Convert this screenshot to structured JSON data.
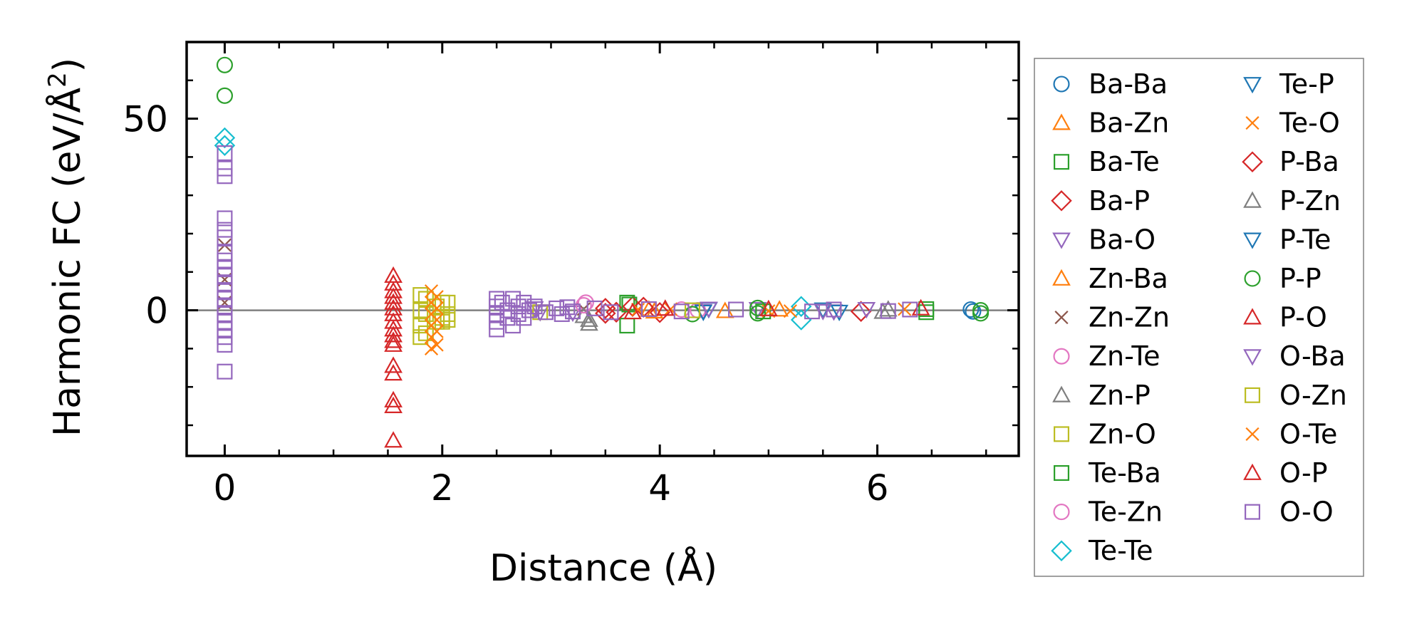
{
  "chart_data": {
    "type": "scatter",
    "title": "",
    "xlabel": "Distance (Å)",
    "ylabel_main": "Harmonic FC (eV/Å",
    "ylabel_sup": "2",
    "ylabel_close": ")",
    "xlim": [
      -0.35,
      7.3
    ],
    "ylim": [
      -38,
      70
    ],
    "xticks": [
      0,
      2,
      4,
      6
    ],
    "xticklabels": [
      "0",
      "2",
      "4",
      "6"
    ],
    "xminor": [
      0.5,
      1,
      1.5,
      2.5,
      3,
      3.5,
      4.5,
      5,
      5.5,
      6.5,
      7
    ],
    "yticks": [
      0,
      50
    ],
    "yticklabels": [
      "0",
      "50"
    ],
    "yminor": [
      -30,
      -20,
      -10,
      10,
      20,
      30,
      40,
      60
    ],
    "zero_line": 0,
    "legend_position": "outside-right",
    "series": [
      {
        "name": "Ba-Ba",
        "marker": "circle",
        "color": "#1f77b4",
        "filled": false,
        "points": [
          [
            6.88,
            -0.3
          ],
          [
            6.86,
            0.2
          ]
        ]
      },
      {
        "name": "Ba-Zn",
        "marker": "triangle-up",
        "color": "#ff7f0e",
        "filled": false,
        "points": [
          [
            3.9,
            0.2
          ],
          [
            4.6,
            -0.2
          ]
        ]
      },
      {
        "name": "Ba-Te",
        "marker": "square",
        "color": "#2ca02c",
        "filled": false,
        "points": [
          [
            3.7,
            -4
          ],
          [
            3.7,
            2
          ],
          [
            6.45,
            -0.5
          ],
          [
            6.45,
            0.3
          ]
        ]
      },
      {
        "name": "Ba-P",
        "marker": "diamond",
        "color": "#d62728",
        "filled": false,
        "points": [
          [
            3.5,
            0.5
          ],
          [
            3.6,
            -0.5
          ],
          [
            3.75,
            1
          ],
          [
            4.0,
            -0.6
          ]
        ]
      },
      {
        "name": "Ba-O",
        "marker": "triangle-down",
        "color": "#9467bd",
        "filled": false,
        "points": [
          [
            2.85,
            0.5
          ],
          [
            3.2,
            -0.6
          ],
          [
            4.4,
            -0.2
          ],
          [
            4.9,
            0.3
          ],
          [
            5.6,
            -0.3
          ]
        ]
      },
      {
        "name": "Zn-Ba",
        "marker": "triangle-up",
        "color": "#ff7f0e",
        "filled": false,
        "points": [
          [
            3.95,
            -0.3
          ],
          [
            5.1,
            0.2
          ]
        ]
      },
      {
        "name": "Zn-Zn",
        "marker": "x",
        "color": "#8c564b",
        "filled": false,
        "points": [
          [
            0,
            17
          ],
          [
            0,
            8
          ],
          [
            0,
            2
          ],
          [
            3.3,
            0.3
          ]
        ]
      },
      {
        "name": "Zn-Te",
        "marker": "circle",
        "color": "#e377c2",
        "filled": false,
        "points": [
          [
            3.32,
            2
          ],
          [
            4.2,
            0.2
          ]
        ]
      },
      {
        "name": "Zn-P",
        "marker": "triangle-up",
        "color": "#7f7f7f",
        "filled": false,
        "points": [
          [
            3.35,
            -3.5
          ],
          [
            3.3,
            -1.5
          ],
          [
            6.1,
            0.2
          ]
        ]
      },
      {
        "name": "Zn-O",
        "marker": "square",
        "color": "#bcbd22",
        "filled": false,
        "points": [
          [
            1.85,
            3
          ],
          [
            1.85,
            -1
          ],
          [
            1.85,
            -6
          ],
          [
            2.0,
            2
          ],
          [
            2.0,
            -2
          ],
          [
            2.0,
            -3
          ]
        ]
      },
      {
        "name": "Te-Ba",
        "marker": "square",
        "color": "#2ca02c",
        "filled": false,
        "points": [
          [
            3.72,
            1.5
          ],
          [
            4.95,
            -0.3
          ]
        ]
      },
      {
        "name": "Te-Zn",
        "marker": "circle",
        "color": "#e377c2",
        "filled": false,
        "points": [
          [
            3.3,
            1.3
          ],
          [
            4.35,
            0
          ]
        ]
      },
      {
        "name": "Te-Te",
        "marker": "diamond",
        "color": "#17becf",
        "filled": false,
        "points": [
          [
            0,
            45
          ],
          [
            0,
            43
          ],
          [
            5.3,
            -2.5
          ],
          [
            5.3,
            1
          ]
        ]
      },
      {
        "name": "Te-P",
        "marker": "triangle-down",
        "color": "#1f77b4",
        "filled": false,
        "points": [
          [
            4.4,
            -0.4
          ],
          [
            5.5,
            0.2
          ]
        ]
      },
      {
        "name": "Te-O",
        "marker": "x",
        "color": "#ff7f0e",
        "filled": false,
        "points": [
          [
            4.1,
            0.3
          ],
          [
            5.0,
            -0.2
          ],
          [
            6.25,
            0.3
          ]
        ]
      },
      {
        "name": "P-Ba",
        "marker": "diamond",
        "color": "#d62728",
        "filled": false,
        "points": [
          [
            3.5,
            -0.8
          ],
          [
            3.85,
            0.8
          ],
          [
            5.85,
            -0.3
          ]
        ]
      },
      {
        "name": "P-Zn",
        "marker": "triangle-up",
        "color": "#7f7f7f",
        "filled": false,
        "points": [
          [
            3.35,
            -2.5
          ],
          [
            6.05,
            -0.4
          ]
        ]
      },
      {
        "name": "P-Te",
        "marker": "triangle-down",
        "color": "#1f77b4",
        "filled": false,
        "points": [
          [
            4.45,
            0.3
          ],
          [
            5.65,
            -0.4
          ]
        ]
      },
      {
        "name": "P-P",
        "marker": "circle",
        "color": "#2ca02c",
        "filled": false,
        "points": [
          [
            0,
            64
          ],
          [
            0,
            56
          ],
          [
            4.3,
            -1
          ],
          [
            4.9,
            -0.8
          ],
          [
            4.9,
            0.6
          ],
          [
            6.95,
            -0.8
          ],
          [
            6.95,
            0
          ]
        ]
      },
      {
        "name": "P-O",
        "marker": "triangle-up",
        "color": "#d62728",
        "filled": false,
        "points": [
          [
            1.55,
            9
          ],
          [
            1.55,
            7
          ],
          [
            1.55,
            5
          ],
          [
            1.55,
            3.5
          ],
          [
            1.55,
            2
          ],
          [
            1.55,
            0.5
          ],
          [
            1.55,
            -1
          ],
          [
            1.55,
            -3
          ],
          [
            1.55,
            -5
          ],
          [
            1.55,
            -6.5
          ],
          [
            1.55,
            -8
          ],
          [
            1.55,
            -9
          ],
          [
            1.55,
            -14.5
          ],
          [
            1.55,
            -16.5
          ],
          [
            1.55,
            -23.5
          ],
          [
            1.55,
            -25
          ],
          [
            1.55,
            -34
          ]
        ]
      },
      {
        "name": "O-Ba",
        "marker": "triangle-down",
        "color": "#9467bd",
        "filled": false,
        "points": [
          [
            2.9,
            -0.5
          ],
          [
            4.45,
            0.4
          ],
          [
            5.5,
            -0.2
          ],
          [
            5.9,
            0.3
          ]
        ]
      },
      {
        "name": "O-Zn",
        "marker": "square",
        "color": "#bcbd22",
        "filled": false,
        "points": [
          [
            1.8,
            4
          ],
          [
            1.8,
            0
          ],
          [
            1.8,
            -4
          ],
          [
            1.8,
            -7
          ],
          [
            1.95,
            1
          ],
          [
            1.95,
            -3
          ],
          [
            2.05,
            2
          ],
          [
            2.05,
            -1
          ],
          [
            2.05,
            -2.5
          ],
          [
            2.9,
            -0.5
          ],
          [
            4.3,
            0
          ]
        ]
      },
      {
        "name": "O-Te",
        "marker": "x",
        "color": "#ff7f0e",
        "filled": false,
        "points": [
          [
            1.9,
            5
          ],
          [
            1.95,
            3.5
          ],
          [
            1.9,
            2
          ],
          [
            1.95,
            0.5
          ],
          [
            1.9,
            -1
          ],
          [
            1.95,
            -2.5
          ],
          [
            1.9,
            -4
          ],
          [
            1.95,
            -5.5
          ],
          [
            1.9,
            -7
          ],
          [
            1.95,
            -9
          ],
          [
            1.9,
            -10
          ],
          [
            3.8,
            0.2
          ],
          [
            5.2,
            -0.2
          ]
        ]
      },
      {
        "name": "O-P",
        "marker": "triangle-up",
        "color": "#d62728",
        "filled": false,
        "points": [
          [
            3.75,
            -0.5
          ],
          [
            4.05,
            0.4
          ],
          [
            5.0,
            0.3
          ],
          [
            6.4,
            0.5
          ]
        ]
      },
      {
        "name": "O-O",
        "marker": "square",
        "color": "#9467bd",
        "filled": false,
        "points": [
          [
            0,
            41
          ],
          [
            0,
            37
          ],
          [
            0,
            35
          ],
          [
            0,
            24
          ],
          [
            0,
            21
          ],
          [
            0,
            19
          ],
          [
            0,
            15
          ],
          [
            0,
            13
          ],
          [
            0,
            11
          ],
          [
            0,
            9
          ],
          [
            0,
            7
          ],
          [
            0,
            5
          ],
          [
            0,
            3
          ],
          [
            0,
            1
          ],
          [
            0,
            -1
          ],
          [
            0,
            -3
          ],
          [
            0,
            -5
          ],
          [
            0,
            -7
          ],
          [
            0,
            -9
          ],
          [
            0,
            -16
          ],
          [
            2.5,
            3
          ],
          [
            2.5,
            1
          ],
          [
            2.5,
            -1
          ],
          [
            2.5,
            -3
          ],
          [
            2.5,
            -5
          ],
          [
            2.55,
            2
          ],
          [
            2.6,
            0
          ],
          [
            2.6,
            -2
          ],
          [
            2.65,
            3
          ],
          [
            2.65,
            -4
          ],
          [
            2.7,
            1
          ],
          [
            2.7,
            -1
          ],
          [
            2.75,
            2
          ],
          [
            2.75,
            -2
          ],
          [
            2.8,
            0
          ],
          [
            2.85,
            1
          ],
          [
            2.95,
            -0.5
          ],
          [
            3.05,
            0.5
          ],
          [
            3.1,
            -1
          ],
          [
            3.15,
            0.8
          ],
          [
            3.2,
            -0.3
          ],
          [
            3.4,
            0.5
          ],
          [
            3.55,
            -0.5
          ],
          [
            3.9,
            0.3
          ],
          [
            4.2,
            -0.3
          ],
          [
            4.7,
            0.2
          ],
          [
            5.4,
            -0.3
          ],
          [
            5.6,
            0.2
          ],
          [
            6.1,
            -0.2
          ],
          [
            6.3,
            0.2
          ]
        ]
      }
    ]
  }
}
